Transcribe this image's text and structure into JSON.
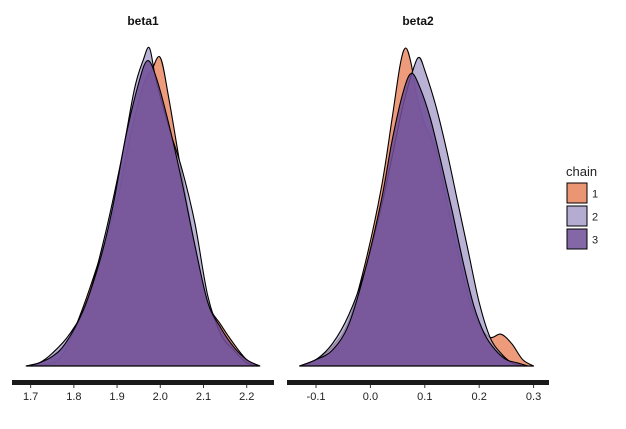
{
  "chart_data": {
    "type": "area",
    "legend": {
      "title": "chain",
      "placement": "right",
      "entries": [
        "1",
        "2",
        "3"
      ]
    },
    "series_colors": {
      "1": "#e8825a",
      "2": "#a79fc9",
      "3": "#6f4c97"
    },
    "grid": false,
    "panels": [
      {
        "title": "beta1",
        "xlim": [
          1.68,
          2.24
        ],
        "ticks": [
          1.7,
          1.8,
          1.9,
          2.0,
          2.1,
          2.2
        ],
        "tick_labels": [
          "1.7",
          "1.8",
          "1.9",
          "2.0",
          "2.1",
          "2.2"
        ],
        "series": [
          {
            "chain": "1",
            "points": [
              [
                1.69,
                0.0
              ],
              [
                1.75,
                0.01
              ],
              [
                1.78,
                0.05
              ],
              [
                1.82,
                0.18
              ],
              [
                1.86,
                0.34
              ],
              [
                1.9,
                0.52
              ],
              [
                1.93,
                0.72
              ],
              [
                1.96,
                0.88
              ],
              [
                1.98,
                0.93
              ],
              [
                2.0,
                0.97
              ],
              [
                2.02,
                0.84
              ],
              [
                2.05,
                0.6
              ],
              [
                2.08,
                0.38
              ],
              [
                2.11,
                0.2
              ],
              [
                2.14,
                0.13
              ],
              [
                2.17,
                0.07
              ],
              [
                2.2,
                0.02
              ],
              [
                2.23,
                0.0
              ]
            ]
          },
          {
            "chain": "2",
            "points": [
              [
                1.69,
                0.0
              ],
              [
                1.72,
                0.01
              ],
              [
                1.75,
                0.04
              ],
              [
                1.79,
                0.1
              ],
              [
                1.83,
                0.2
              ],
              [
                1.87,
                0.4
              ],
              [
                1.91,
                0.65
              ],
              [
                1.94,
                0.87
              ],
              [
                1.96,
                0.96
              ],
              [
                1.975,
                1.0
              ],
              [
                1.99,
                0.9
              ],
              [
                2.02,
                0.75
              ],
              [
                2.05,
                0.62
              ],
              [
                2.08,
                0.45
              ],
              [
                2.11,
                0.22
              ],
              [
                2.14,
                0.1
              ],
              [
                2.17,
                0.05
              ],
              [
                2.2,
                0.01
              ],
              [
                2.23,
                0.0
              ]
            ]
          },
          {
            "chain": "3",
            "points": [
              [
                1.69,
                0.0
              ],
              [
                1.72,
                0.01
              ],
              [
                1.75,
                0.03
              ],
              [
                1.78,
                0.07
              ],
              [
                1.82,
                0.17
              ],
              [
                1.86,
                0.33
              ],
              [
                1.89,
                0.5
              ],
              [
                1.92,
                0.72
              ],
              [
                1.95,
                0.89
              ],
              [
                1.97,
                0.96
              ],
              [
                1.99,
                0.91
              ],
              [
                2.02,
                0.76
              ],
              [
                2.05,
                0.58
              ],
              [
                2.08,
                0.38
              ],
              [
                2.11,
                0.2
              ],
              [
                2.14,
                0.12
              ],
              [
                2.17,
                0.06
              ],
              [
                2.2,
                0.02
              ],
              [
                2.23,
                0.0
              ]
            ]
          }
        ]
      },
      {
        "title": "beta2",
        "xlim": [
          -0.135,
          0.31
        ],
        "ticks": [
          -0.1,
          0.0,
          0.1,
          0.2,
          0.3
        ],
        "tick_labels": [
          "-0.1",
          "0.0",
          "0.1",
          "0.2",
          "0.3"
        ],
        "series": [
          {
            "chain": "1",
            "points": [
              [
                -0.13,
                0.0
              ],
              [
                -0.1,
                0.02
              ],
              [
                -0.07,
                0.06
              ],
              [
                -0.04,
                0.14
              ],
              [
                -0.01,
                0.32
              ],
              [
                0.02,
                0.56
              ],
              [
                0.04,
                0.78
              ],
              [
                0.055,
                0.95
              ],
              [
                0.065,
                1.0
              ],
              [
                0.075,
                0.95
              ],
              [
                0.085,
                0.85
              ],
              [
                0.1,
                0.76
              ],
              [
                0.12,
                0.68
              ],
              [
                0.14,
                0.52
              ],
              [
                0.16,
                0.36
              ],
              [
                0.18,
                0.22
              ],
              [
                0.2,
                0.13
              ],
              [
                0.22,
                0.09
              ],
              [
                0.24,
                0.1
              ],
              [
                0.26,
                0.07
              ],
              [
                0.28,
                0.02
              ],
              [
                0.3,
                0.0
              ]
            ]
          },
          {
            "chain": "2",
            "points": [
              [
                -0.13,
                0.0
              ],
              [
                -0.1,
                0.02
              ],
              [
                -0.07,
                0.07
              ],
              [
                -0.04,
                0.16
              ],
              [
                -0.01,
                0.3
              ],
              [
                0.02,
                0.5
              ],
              [
                0.04,
                0.66
              ],
              [
                0.06,
                0.82
              ],
              [
                0.08,
                0.94
              ],
              [
                0.09,
                0.97
              ],
              [
                0.1,
                0.93
              ],
              [
                0.12,
                0.82
              ],
              [
                0.14,
                0.68
              ],
              [
                0.16,
                0.52
              ],
              [
                0.18,
                0.36
              ],
              [
                0.2,
                0.2
              ],
              [
                0.22,
                0.09
              ],
              [
                0.24,
                0.04
              ],
              [
                0.26,
                0.01
              ],
              [
                0.28,
                0.0
              ]
            ]
          },
          {
            "chain": "3",
            "points": [
              [
                -0.13,
                0.0
              ],
              [
                -0.1,
                0.02
              ],
              [
                -0.07,
                0.05
              ],
              [
                -0.04,
                0.13
              ],
              [
                -0.01,
                0.3
              ],
              [
                0.02,
                0.52
              ],
              [
                0.04,
                0.71
              ],
              [
                0.06,
                0.86
              ],
              [
                0.075,
                0.92
              ],
              [
                0.09,
                0.88
              ],
              [
                0.11,
                0.78
              ],
              [
                0.13,
                0.64
              ],
              [
                0.15,
                0.49
              ],
              [
                0.17,
                0.33
              ],
              [
                0.19,
                0.19
              ],
              [
                0.21,
                0.1
              ],
              [
                0.23,
                0.05
              ],
              [
                0.25,
                0.02
              ],
              [
                0.27,
                0.01
              ],
              [
                0.29,
                0.0
              ]
            ]
          }
        ]
      }
    ]
  }
}
